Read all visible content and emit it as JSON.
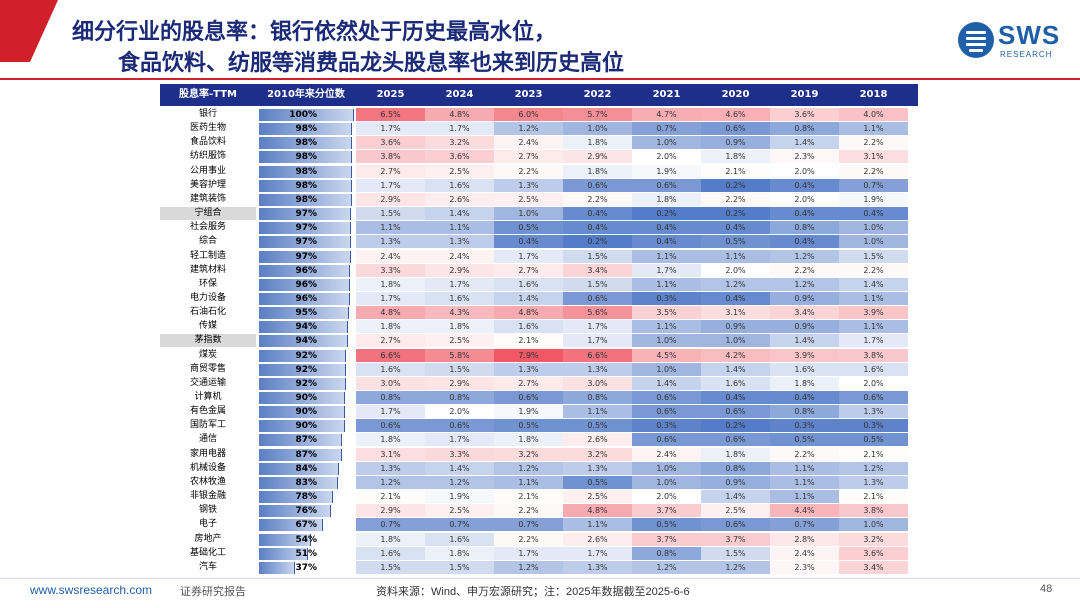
{
  "slide": {
    "title_line1": "细分行业的股息率：银行依然处于历史最高水位，",
    "title_line2": "食品饮料、纺服等消费品龙头股息率也来到历史高位",
    "logo_text": "SWS",
    "logo_sub": "RESEARCH",
    "footer_url": "www.swsresearch.com",
    "footer_label": "证券研究报告",
    "footer_source": "资料来源：Wind、申万宏源研究；注：2025年数据截至2025-6-6",
    "page_number": "48",
    "accent_red": "#d0202a",
    "accent_navy": "#1e2f8a"
  },
  "chart_data": {
    "type": "table",
    "columns": [
      "股息率-TTM",
      "2010年来分位数",
      "2025",
      "2024",
      "2023",
      "2022",
      "2021",
      "2020",
      "2019",
      "2018"
    ],
    "rows": [
      {
        "name": "银行",
        "pct": "100%",
        "pct_value": 100,
        "values": [
          "6.5%",
          "4.8%",
          "6.0%",
          "5.7%",
          "4.7%",
          "4.6%",
          "3.6%",
          "4.0%"
        ]
      },
      {
        "name": "医药生物",
        "pct": "98%",
        "pct_value": 98,
        "values": [
          "1.7%",
          "1.7%",
          "1.2%",
          "1.0%",
          "0.7%",
          "0.6%",
          "0.8%",
          "1.1%"
        ]
      },
      {
        "name": "食品饮料",
        "pct": "98%",
        "pct_value": 98,
        "values": [
          "3.6%",
          "3.2%",
          "2.4%",
          "1.8%",
          "1.0%",
          "0.9%",
          "1.4%",
          "2.2%"
        ]
      },
      {
        "name": "纺织服饰",
        "pct": "98%",
        "pct_value": 98,
        "values": [
          "3.8%",
          "3.6%",
          "2.7%",
          "2.9%",
          "2.0%",
          "1.8%",
          "2.3%",
          "3.1%"
        ]
      },
      {
        "name": "公用事业",
        "pct": "98%",
        "pct_value": 98,
        "values": [
          "2.7%",
          "2.5%",
          "2.2%",
          "1.8%",
          "1.9%",
          "2.1%",
          "2.0%",
          "2.2%"
        ]
      },
      {
        "name": "美容护理",
        "pct": "98%",
        "pct_value": 98,
        "values": [
          "1.7%",
          "1.6%",
          "1.3%",
          "0.6%",
          "0.6%",
          "0.2%",
          "0.4%",
          "0.7%"
        ]
      },
      {
        "name": "建筑装饰",
        "pct": "98%",
        "pct_value": 98,
        "values": [
          "2.9%",
          "2.6%",
          "2.5%",
          "2.2%",
          "1.8%",
          "2.2%",
          "2.0%",
          "1.9%"
        ]
      },
      {
        "name": "宁组合",
        "pct": "97%",
        "pct_value": 97,
        "highlight": true,
        "values": [
          "1.5%",
          "1.4%",
          "1.0%",
          "0.4%",
          "0.2%",
          "0.2%",
          "0.4%",
          "0.4%"
        ]
      },
      {
        "name": "社会服务",
        "pct": "97%",
        "pct_value": 97,
        "values": [
          "1.1%",
          "1.1%",
          "0.5%",
          "0.4%",
          "0.4%",
          "0.4%",
          "0.8%",
          "1.0%"
        ]
      },
      {
        "name": "综合",
        "pct": "97%",
        "pct_value": 97,
        "values": [
          "1.3%",
          "1.3%",
          "0.4%",
          "0.2%",
          "0.4%",
          "0.5%",
          "0.4%",
          "1.0%"
        ]
      },
      {
        "name": "轻工制造",
        "pct": "97%",
        "pct_value": 97,
        "values": [
          "2.4%",
          "2.4%",
          "1.7%",
          "1.5%",
          "1.1%",
          "1.1%",
          "1.2%",
          "1.5%"
        ]
      },
      {
        "name": "建筑材料",
        "pct": "96%",
        "pct_value": 96,
        "values": [
          "3.3%",
          "2.9%",
          "2.7%",
          "3.4%",
          "1.7%",
          "2.0%",
          "2.2%",
          "2.2%"
        ]
      },
      {
        "name": "环保",
        "pct": "96%",
        "pct_value": 96,
        "values": [
          "1.8%",
          "1.7%",
          "1.6%",
          "1.5%",
          "1.1%",
          "1.2%",
          "1.2%",
          "1.4%"
        ]
      },
      {
        "name": "电力设备",
        "pct": "96%",
        "pct_value": 96,
        "values": [
          "1.7%",
          "1.6%",
          "1.4%",
          "0.6%",
          "0.3%",
          "0.4%",
          "0.9%",
          "1.1%"
        ]
      },
      {
        "name": "石油石化",
        "pct": "95%",
        "pct_value": 95,
        "values": [
          "4.8%",
          "4.3%",
          "4.8%",
          "5.6%",
          "3.5%",
          "3.1%",
          "3.4%",
          "3.9%"
        ]
      },
      {
        "name": "传媒",
        "pct": "94%",
        "pct_value": 94,
        "values": [
          "1.8%",
          "1.8%",
          "1.6%",
          "1.7%",
          "1.1%",
          "0.9%",
          "0.9%",
          "1.1%"
        ]
      },
      {
        "name": "茅指数",
        "pct": "94%",
        "pct_value": 94,
        "highlight": true,
        "values": [
          "2.7%",
          "2.5%",
          "2.1%",
          "1.7%",
          "1.0%",
          "1.0%",
          "1.4%",
          "1.7%"
        ]
      },
      {
        "name": "煤炭",
        "pct": "92%",
        "pct_value": 92,
        "values": [
          "6.6%",
          "5.8%",
          "7.9%",
          "6.6%",
          "4.5%",
          "4.2%",
          "3.9%",
          "3.8%"
        ]
      },
      {
        "name": "商贸零售",
        "pct": "92%",
        "pct_value": 92,
        "values": [
          "1.6%",
          "1.5%",
          "1.3%",
          "1.3%",
          "1.0%",
          "1.4%",
          "1.6%",
          "1.6%"
        ]
      },
      {
        "name": "交通运输",
        "pct": "92%",
        "pct_value": 92,
        "values": [
          "3.0%",
          "2.9%",
          "2.7%",
          "3.0%",
          "1.4%",
          "1.6%",
          "1.8%",
          "2.0%"
        ]
      },
      {
        "name": "计算机",
        "pct": "90%",
        "pct_value": 90,
        "values": [
          "0.8%",
          "0.8%",
          "0.6%",
          "0.8%",
          "0.6%",
          "0.4%",
          "0.4%",
          "0.6%"
        ]
      },
      {
        "name": "有色金属",
        "pct": "90%",
        "pct_value": 90,
        "values": [
          "1.7%",
          "2.0%",
          "1.9%",
          "1.1%",
          "0.6%",
          "0.6%",
          "0.8%",
          "1.3%"
        ]
      },
      {
        "name": "国防军工",
        "pct": "90%",
        "pct_value": 90,
        "values": [
          "0.6%",
          "0.6%",
          "0.5%",
          "0.5%",
          "0.3%",
          "0.2%",
          "0.3%",
          "0.3%"
        ]
      },
      {
        "name": "通信",
        "pct": "87%",
        "pct_value": 87,
        "values": [
          "1.8%",
          "1.7%",
          "1.8%",
          "2.6%",
          "0.6%",
          "0.6%",
          "0.5%",
          "0.5%"
        ]
      },
      {
        "name": "家用电器",
        "pct": "87%",
        "pct_value": 87,
        "values": [
          "3.1%",
          "3.3%",
          "3.2%",
          "3.2%",
          "2.4%",
          "1.8%",
          "2.2%",
          "2.1%"
        ]
      },
      {
        "name": "机械设备",
        "pct": "84%",
        "pct_value": 84,
        "values": [
          "1.3%",
          "1.4%",
          "1.2%",
          "1.3%",
          "1.0%",
          "0.8%",
          "1.1%",
          "1.2%"
        ]
      },
      {
        "name": "农林牧渔",
        "pct": "83%",
        "pct_value": 83,
        "values": [
          "1.2%",
          "1.2%",
          "1.1%",
          "0.5%",
          "1.0%",
          "0.9%",
          "1.1%",
          "1.3%"
        ]
      },
      {
        "name": "非银金融",
        "pct": "78%",
        "pct_value": 78,
        "values": [
          "2.1%",
          "1.9%",
          "2.1%",
          "2.5%",
          "2.0%",
          "1.4%",
          "1.1%",
          "2.1%"
        ]
      },
      {
        "name": "钢铁",
        "pct": "76%",
        "pct_value": 76,
        "values": [
          "2.9%",
          "2.5%",
          "2.2%",
          "4.8%",
          "3.7%",
          "2.5%",
          "4.4%",
          "3.8%"
        ]
      },
      {
        "name": "电子",
        "pct": "67%",
        "pct_value": 67,
        "values": [
          "0.7%",
          "0.7%",
          "0.7%",
          "1.1%",
          "0.5%",
          "0.6%",
          "0.7%",
          "1.0%"
        ]
      },
      {
        "name": "房地产",
        "pct": "54%",
        "pct_value": 54,
        "values": [
          "1.8%",
          "1.6%",
          "2.2%",
          "2.6%",
          "3.7%",
          "3.7%",
          "2.8%",
          "3.2%"
        ]
      },
      {
        "name": "基础化工",
        "pct": "51%",
        "pct_value": 51,
        "values": [
          "1.6%",
          "1.8%",
          "1.7%",
          "1.7%",
          "0.8%",
          "1.5%",
          "2.4%",
          "3.6%"
        ]
      },
      {
        "name": "汽车",
        "pct": "37%",
        "pct_value": 37,
        "values": [
          "1.5%",
          "1.5%",
          "1.2%",
          "1.3%",
          "1.2%",
          "1.2%",
          "2.3%",
          "3.4%"
        ]
      }
    ]
  }
}
